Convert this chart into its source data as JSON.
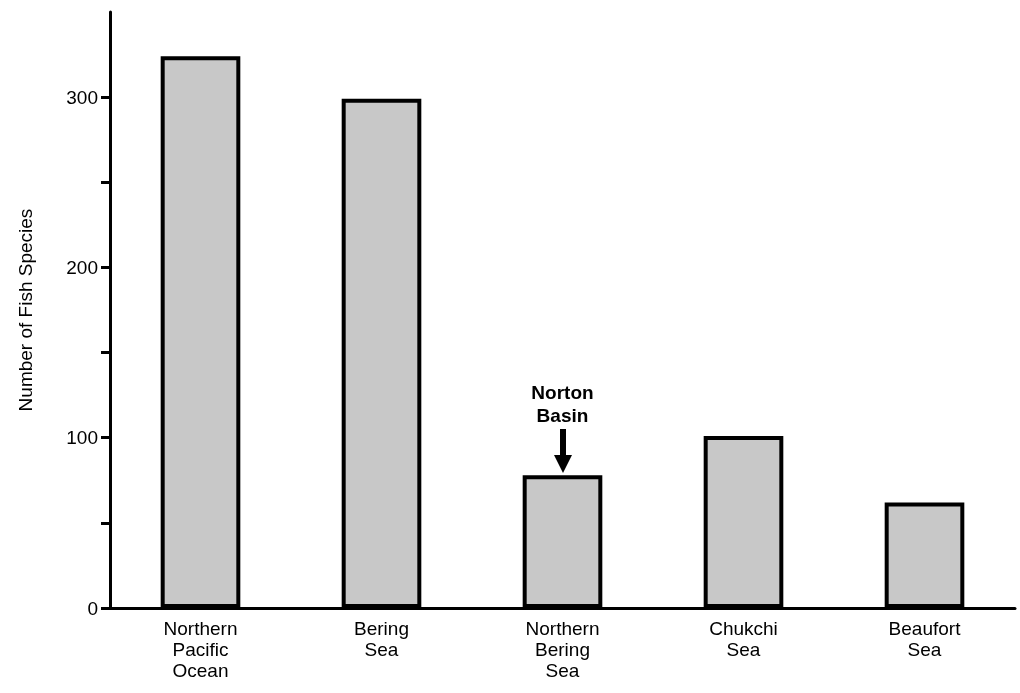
{
  "chart_data": {
    "type": "bar",
    "ylabel": "Number of Fish Species",
    "categories": [
      "Northern Pacific Ocean",
      "Bering Sea",
      "Northern Bering Sea",
      "Chukchi Sea",
      "Beaufort Sea"
    ],
    "values": [
      324,
      299,
      78,
      101,
      62
    ],
    "color": "#c8c8c8",
    "ylim": [
      0,
      350
    ],
    "yticks": [
      0,
      {
        "value": 50,
        "label": null
      },
      100,
      {
        "value": 150,
        "label": null
      },
      200,
      {
        "value": 250,
        "label": null
      },
      300
    ],
    "annotations": [
      {
        "text": "Norton Basin",
        "x": "Northern Bering Sea",
        "y": 78
      }
    ],
    "grid": false
  }
}
